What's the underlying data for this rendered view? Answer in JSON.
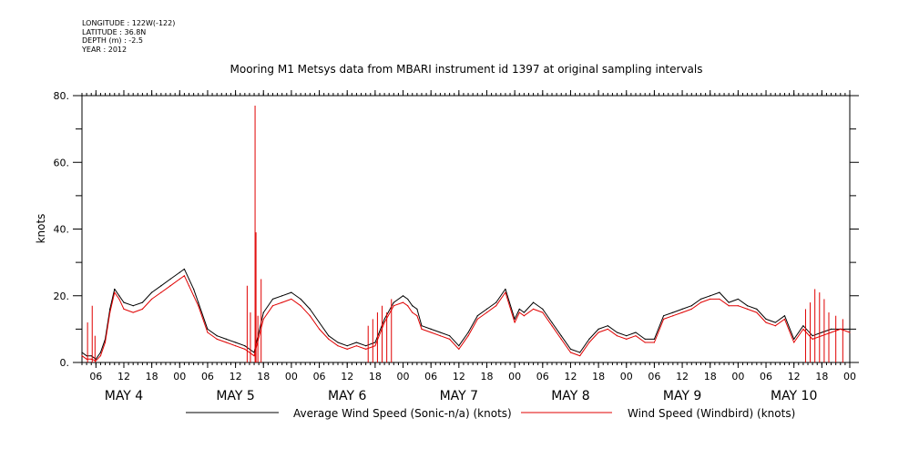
{
  "metadata": {
    "longitude": "LONGITUDE : 122W(-122)",
    "latitude": "LATITUDE : 36.8N",
    "depth": "DEPTH (m) : -2.5",
    "year": "YEAR : 2012"
  },
  "chart_data": {
    "type": "line",
    "title": "Mooring M1 Metsys data from MBARI instrument id 1397 at original sampling intervals",
    "xlabel": "",
    "ylabel": "knots",
    "ylim": [
      0,
      80
    ],
    "y_ticks": [
      0,
      20,
      40,
      60,
      80
    ],
    "y_tick_labels": [
      "0.",
      "20.",
      "40.",
      "60.",
      "80."
    ],
    "x_range_hours": [
      3,
      168
    ],
    "x_hour_ticks": [
      {
        "t": 6,
        "label": "06"
      },
      {
        "t": 12,
        "label": "12"
      },
      {
        "t": 18,
        "label": "18"
      },
      {
        "t": 24,
        "label": "00"
      },
      {
        "t": 30,
        "label": "06"
      },
      {
        "t": 36,
        "label": "12"
      },
      {
        "t": 42,
        "label": "18"
      },
      {
        "t": 48,
        "label": "00"
      },
      {
        "t": 54,
        "label": "06"
      },
      {
        "t": 60,
        "label": "12"
      },
      {
        "t": 66,
        "label": "18"
      },
      {
        "t": 72,
        "label": "00"
      },
      {
        "t": 78,
        "label": "06"
      },
      {
        "t": 84,
        "label": "12"
      },
      {
        "t": 90,
        "label": "18"
      },
      {
        "t": 96,
        "label": "00"
      },
      {
        "t": 102,
        "label": "06"
      },
      {
        "t": 108,
        "label": "12"
      },
      {
        "t": 114,
        "label": "18"
      },
      {
        "t": 120,
        "label": "00"
      },
      {
        "t": 126,
        "label": "06"
      },
      {
        "t": 132,
        "label": "12"
      },
      {
        "t": 138,
        "label": "18"
      },
      {
        "t": 144,
        "label": "00"
      },
      {
        "t": 150,
        "label": "06"
      },
      {
        "t": 156,
        "label": "12"
      },
      {
        "t": 162,
        "label": "18"
      },
      {
        "t": 168,
        "label": "00"
      }
    ],
    "x_day_labels": [
      {
        "t": 12,
        "label": "MAY   4"
      },
      {
        "t": 36,
        "label": "MAY   5"
      },
      {
        "t": 60,
        "label": "MAY   6"
      },
      {
        "t": 84,
        "label": "MAY   7"
      },
      {
        "t": 108,
        "label": "MAY   8"
      },
      {
        "t": 132,
        "label": "MAY   9"
      },
      {
        "t": 156,
        "label": "MAY 10"
      }
    ],
    "grid": false,
    "legend_position": "bottom",
    "series": [
      {
        "name": "Average Wind Speed (Sonic-n/a) (knots)",
        "color": "#000000",
        "x": [
          3,
          4,
          5,
          6,
          7,
          8,
          9,
          10,
          11,
          12,
          14,
          16,
          18,
          20,
          22,
          24,
          25,
          26,
          27,
          28,
          30,
          32,
          34,
          36,
          38,
          40,
          42,
          44,
          46,
          48,
          50,
          52,
          54,
          56,
          58,
          60,
          62,
          64,
          66,
          68,
          70,
          72,
          73,
          74,
          75,
          76,
          78,
          80,
          82,
          84,
          86,
          88,
          90,
          92,
          94,
          96,
          97,
          98,
          100,
          102,
          104,
          106,
          108,
          110,
          112,
          114,
          116,
          118,
          120,
          122,
          124,
          126,
          128,
          130,
          132,
          134,
          136,
          138,
          140,
          142,
          144,
          146,
          148,
          150,
          152,
          154,
          156,
          158,
          160,
          162,
          164,
          166,
          168
        ],
        "values": [
          3,
          2,
          2,
          1,
          3,
          7,
          16,
          22,
          20,
          18,
          17,
          18,
          21,
          23,
          25,
          27,
          28,
          25,
          22,
          18,
          10,
          8,
          7,
          6,
          5,
          3,
          15,
          19,
          20,
          21,
          19,
          16,
          12,
          8,
          6,
          5,
          6,
          5,
          6,
          13,
          18,
          20,
          19,
          17,
          16,
          11,
          10,
          9,
          8,
          5,
          9,
          14,
          16,
          18,
          22,
          13,
          16,
          15,
          18,
          16,
          12,
          8,
          4,
          3,
          7,
          10,
          11,
          9,
          8,
          9,
          7,
          7,
          14,
          15,
          16,
          17,
          19,
          20,
          21,
          18,
          19,
          17,
          16,
          13,
          12,
          14,
          7,
          11,
          8,
          9,
          10,
          10,
          10
        ]
      },
      {
        "name": "Wind Speed (Windbird) (knots)",
        "color": "#e00000",
        "x": [
          3,
          4,
          5,
          6,
          7,
          8,
          9,
          10,
          11,
          12,
          14,
          16,
          18,
          20,
          22,
          24,
          25,
          26,
          27,
          28,
          30,
          32,
          34,
          36,
          38,
          40,
          42,
          44,
          46,
          48,
          50,
          52,
          54,
          56,
          58,
          60,
          62,
          64,
          66,
          68,
          70,
          72,
          73,
          74,
          75,
          76,
          78,
          80,
          82,
          84,
          86,
          88,
          90,
          92,
          94,
          96,
          97,
          98,
          100,
          102,
          104,
          106,
          108,
          110,
          112,
          114,
          116,
          118,
          120,
          122,
          124,
          126,
          128,
          130,
          132,
          134,
          136,
          138,
          140,
          142,
          144,
          146,
          148,
          150,
          152,
          154,
          156,
          158,
          160,
          162,
          164,
          166,
          168
        ],
        "values": [
          2,
          1,
          1,
          0.5,
          2,
          6,
          15,
          21,
          19,
          16,
          15,
          16,
          19,
          21,
          23,
          25,
          26,
          23,
          20,
          17,
          9,
          7,
          6,
          5,
          4,
          2,
          13,
          17,
          18,
          19,
          17,
          14,
          10,
          7,
          5,
          4,
          5,
          4,
          5,
          12,
          17,
          18,
          17,
          15,
          14,
          10,
          9,
          8,
          7,
          4,
          8,
          13,
          15,
          17,
          21,
          12,
          15,
          14,
          16,
          15,
          11,
          7,
          3,
          2,
          6,
          9,
          10,
          8,
          7,
          8,
          6,
          6,
          13,
          14,
          15,
          16,
          18,
          19,
          19,
          17,
          17,
          16,
          15,
          12,
          11,
          13,
          6,
          10,
          7,
          8,
          9,
          10,
          9
        ],
        "spikes": [
          {
            "t": 4.2,
            "v": 12
          },
          {
            "t": 5.2,
            "v": 17
          },
          {
            "t": 5.8,
            "v": 8
          },
          {
            "t": 38.5,
            "v": 23
          },
          {
            "t": 39.2,
            "v": 15
          },
          {
            "t": 40.2,
            "v": 77
          },
          {
            "t": 40.4,
            "v": 39
          },
          {
            "t": 40.8,
            "v": 14
          },
          {
            "t": 41.5,
            "v": 25
          },
          {
            "t": 64.5,
            "v": 11
          },
          {
            "t": 65.5,
            "v": 13
          },
          {
            "t": 66.5,
            "v": 15
          },
          {
            "t": 67.5,
            "v": 17
          },
          {
            "t": 68.5,
            "v": 15
          },
          {
            "t": 69.5,
            "v": 19
          },
          {
            "t": 158.5,
            "v": 16
          },
          {
            "t": 159.5,
            "v": 18
          },
          {
            "t": 160.5,
            "v": 22
          },
          {
            "t": 161.5,
            "v": 21
          },
          {
            "t": 162.5,
            "v": 19
          },
          {
            "t": 163.5,
            "v": 15
          },
          {
            "t": 165,
            "v": 14
          },
          {
            "t": 166.5,
            "v": 13
          }
        ]
      }
    ]
  }
}
